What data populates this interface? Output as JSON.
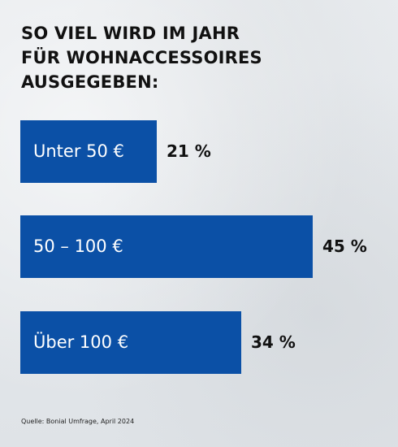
{
  "chart_data": {
    "type": "bar",
    "orientation": "horizontal",
    "title_lines": [
      "SO VIEL WIRD IM JAHR",
      "FÜR WOHNACCESSOIRES",
      "AUSGEGEBEN:"
    ],
    "categories": [
      "Unter 50 €",
      "50 – 100 €",
      "Über 100 €"
    ],
    "values": [
      21,
      45,
      34
    ],
    "value_labels": [
      "21 %",
      "45 %",
      "34 %"
    ],
    "xlim": [
      0,
      45
    ],
    "grid": false,
    "legend": "none"
  },
  "source": "Quelle:  Bonial Umfrage, April 2024",
  "colors": {
    "bar": "#0b50a6",
    "text": "#111111",
    "bar_text": "#ffffff"
  }
}
